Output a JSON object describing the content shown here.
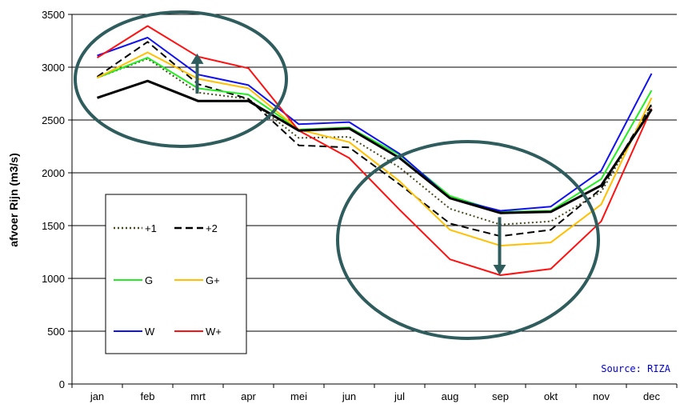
{
  "chart_data": {
    "type": "line",
    "title": "",
    "xlabel": "",
    "ylabel": "afvoer Rijn (m3/s)",
    "categories": [
      "jan",
      "feb",
      "mrt",
      "apr",
      "mei",
      "jun",
      "jul",
      "aug",
      "sep",
      "okt",
      "nov",
      "dec"
    ],
    "ylim": [
      0,
      3500
    ],
    "yticks": [
      0,
      500,
      1000,
      1500,
      2000,
      2500,
      3000,
      3500
    ],
    "grid": true,
    "legend_position": "left-lower",
    "series": [
      {
        "name": "+1",
        "color": "#4a4a20",
        "style": "dotted",
        "width": 2,
        "values": [
          2900,
          3080,
          2760,
          2700,
          2330,
          2340,
          2050,
          1660,
          1510,
          1540,
          1820,
          2630
        ]
      },
      {
        "name": "+2",
        "color": "#000000",
        "style": "dashed",
        "width": 2,
        "values": [
          2910,
          3240,
          2840,
          2700,
          2260,
          2240,
          1890,
          1520,
          1400,
          1460,
          1850,
          2650
        ]
      },
      {
        "name": "G",
        "color": "#22ee22",
        "style": "solid",
        "width": 2,
        "values": [
          2900,
          3090,
          2800,
          2740,
          2410,
          2430,
          2170,
          1780,
          1630,
          1640,
          1940,
          2780
        ]
      },
      {
        "name": "G+",
        "color": "#ffc000",
        "style": "solid",
        "width": 2,
        "values": [
          2900,
          3140,
          2890,
          2800,
          2410,
          2290,
          1920,
          1460,
          1310,
          1340,
          1700,
          2710
        ]
      },
      {
        "name": "W",
        "color": "#1111ee",
        "style": "solid",
        "width": 2,
        "values": [
          3110,
          3280,
          2930,
          2830,
          2460,
          2480,
          2180,
          1760,
          1640,
          1680,
          2020,
          2940
        ]
      },
      {
        "name": "W+",
        "color": "#ff1111",
        "style": "solid",
        "width": 2,
        "values": [
          3090,
          3390,
          3100,
          2990,
          2400,
          2140,
          1650,
          1180,
          1030,
          1090,
          1540,
          2610
        ]
      },
      {
        "name": "",
        "color": "#000000",
        "style": "solid",
        "width": 3,
        "values": [
          2710,
          2870,
          2680,
          2680,
          2400,
          2420,
          2140,
          1760,
          1620,
          1630,
          1880,
          2600
        ]
      }
    ],
    "annotations": {
      "source": "Source: RIZA",
      "source_color": "#0000cc",
      "ellipse_color": "#2f5c5c",
      "arrow_up_month": "mrt",
      "arrow_up_from": 2750,
      "arrow_up_to": 3130,
      "arrow_down_month": "sep",
      "arrow_down_from": 1580,
      "arrow_down_to": 1030
    }
  }
}
